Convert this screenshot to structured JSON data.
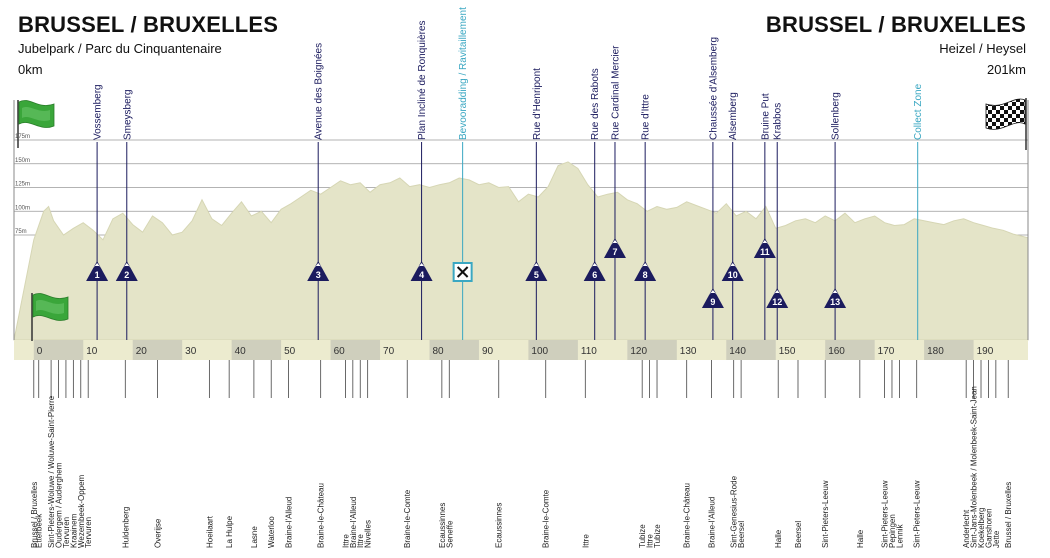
{
  "start": {
    "title": "BRUSSEL / BRUXELLES",
    "place": "Jubelpark / Parc du Cinquantenaire",
    "km": "0km"
  },
  "finish": {
    "title": "BRUSSEL / BRUXELLES",
    "place": "Heizel / Heysel",
    "km": "201km"
  },
  "colors": {
    "profile": "#e4e4c8",
    "profile_edge": "#d6d6b4",
    "axis_band": "#ecebcf",
    "axis_dark": "#cfcfbd",
    "marker": "#1b1b5e",
    "accent": "#3aa7c2",
    "flag_green": "#3aa63a"
  },
  "chart_data": {
    "type": "area",
    "title": "BRUSSEL / BRUXELLES",
    "xlim": [
      -4,
      201
    ],
    "x_ticks": [
      0,
      10,
      20,
      30,
      40,
      50,
      60,
      70,
      80,
      90,
      100,
      110,
      120,
      130,
      140,
      150,
      160,
      170,
      180,
      190
    ],
    "y_ticks": [
      {
        "value": 175,
        "label": "175m"
      },
      {
        "value": 150,
        "label": "150m"
      },
      {
        "value": 125,
        "label": "125m"
      },
      {
        "value": 100,
        "label": "100m"
      },
      {
        "value": 75,
        "label": "75m"
      }
    ],
    "elevation_profile": {
      "unit": "m",
      "x": [
        0,
        2,
        3,
        4,
        6,
        8,
        10,
        12,
        14,
        16,
        18,
        20,
        22,
        24,
        26,
        28,
        30,
        32,
        34,
        36,
        38,
        40,
        42,
        44,
        46,
        48,
        50,
        52,
        54,
        56,
        58,
        60,
        62,
        64,
        66,
        68,
        70,
        72,
        74,
        76,
        78,
        80,
        82,
        84,
        86,
        88,
        90,
        92,
        94,
        96,
        98,
        100,
        102,
        104,
        106,
        108,
        110,
        112,
        114,
        116,
        118,
        120,
        122,
        124,
        126,
        128,
        130,
        132,
        134,
        136,
        138,
        140,
        142,
        144,
        146,
        148,
        150,
        152,
        154,
        156,
        158,
        160,
        162,
        164,
        166,
        168,
        170,
        172,
        174,
        176,
        178,
        180,
        182,
        184,
        186,
        188,
        190,
        192,
        194,
        196,
        198,
        201
      ],
      "y": [
        70,
        100,
        105,
        90,
        75,
        82,
        88,
        80,
        70,
        92,
        98,
        86,
        78,
        95,
        88,
        75,
        78,
        90,
        112,
        92,
        85,
        98,
        110,
        95,
        100,
        88,
        102,
        108,
        115,
        122,
        118,
        125,
        132,
        128,
        130,
        120,
        128,
        130,
        135,
        126,
        128,
        125,
        128,
        130,
        135,
        133,
        128,
        130,
        125,
        126,
        110,
        118,
        115,
        126,
        148,
        152,
        145,
        128,
        115,
        118,
        120,
        112,
        108,
        100,
        105,
        102,
        104,
        110,
        106,
        102,
        98,
        108,
        95,
        100,
        92,
        105,
        82,
        85,
        90,
        92,
        88,
        95,
        90,
        98,
        88,
        92,
        95,
        88,
        85,
        86,
        92,
        90,
        88,
        86,
        90,
        92,
        88,
        85,
        82,
        80,
        76,
        72
      ]
    },
    "climbs": [
      {
        "name": "Vossemberg",
        "km": 12.8,
        "number": "1",
        "row": 1
      },
      {
        "name": "Smeysberg",
        "km": 18.8,
        "number": "2",
        "row": 1
      },
      {
        "name": "Avenue des Boignées",
        "km": 57.5,
        "number": "3",
        "row": 1
      },
      {
        "name": "Plan Incliné de Ronquières",
        "km": 78.4,
        "number": "4",
        "row": 1
      },
      {
        "name": "Rue d'Henripont",
        "km": 101.6,
        "number": "5",
        "row": 1
      },
      {
        "name": "Rue des Rabots",
        "km": 113.4,
        "number": "6",
        "row": 1
      },
      {
        "name": "Rue Cardinal Mercier",
        "km": 117.5,
        "number": "7",
        "row": 0
      },
      {
        "name": "Rue d'Ittre",
        "km": 123.6,
        "number": "8",
        "row": 1
      },
      {
        "name": "Chaussée d'Alsemberg",
        "km": 137.3,
        "number": "9",
        "row": 2
      },
      {
        "name": "Alsemberg",
        "km": 141.3,
        "number": "10",
        "row": 1
      },
      {
        "name": "Bruine Put",
        "km": 147.8,
        "number": "11",
        "row": 0
      },
      {
        "name": "Krabbos",
        "km": 150.3,
        "number": "12",
        "row": 2
      },
      {
        "name": "Sollenberg",
        "km": 162.0,
        "number": "13",
        "row": 2
      }
    ],
    "feed_zone": {
      "name": "Bevooradding / Ravitaillement",
      "km": 86.7
    },
    "collect_zone": {
      "name": "Collect Zone",
      "km": 178.7
    },
    "places": [
      {
        "name": "Brussel / Bruxelles",
        "km": 0
      },
      {
        "name": "Etterbeek",
        "km": 1
      },
      {
        "name": "Sint-Pieters-Woluwe / Woluwe-Saint-Pierre",
        "km": 3.5
      },
      {
        "name": "Oudergem / Auderghem",
        "km": 5
      },
      {
        "name": "Tervuren",
        "km": 6.5
      },
      {
        "name": "Kraainem",
        "km": 8
      },
      {
        "name": "Wezembeek-Oppem",
        "km": 9.5
      },
      {
        "name": "Tervuren",
        "km": 11
      },
      {
        "name": "Huldenberg",
        "km": 18.5
      },
      {
        "name": "Overijse",
        "km": 25
      },
      {
        "name": "Hoeilaart",
        "km": 35.5
      },
      {
        "name": "La Hulpe",
        "km": 39.5
      },
      {
        "name": "Lasne",
        "km": 44.5
      },
      {
        "name": "Waterloo",
        "km": 48
      },
      {
        "name": "Braine-l'Alleud",
        "km": 51.5
      },
      {
        "name": "Braine-le-Château",
        "km": 58
      },
      {
        "name": "Ittre",
        "km": 63
      },
      {
        "name": "Braine-l'Alleud",
        "km": 64.5
      },
      {
        "name": "Ittre",
        "km": 66
      },
      {
        "name": "Nivelles",
        "km": 67.5
      },
      {
        "name": "Braine-le-Comte",
        "km": 75.5
      },
      {
        "name": "Ecaussinnes",
        "km": 82.5
      },
      {
        "name": "Seneffe",
        "km": 84
      },
      {
        "name": "Ecaussinnes",
        "km": 94
      },
      {
        "name": "Braine-le-Comte",
        "km": 103.5
      },
      {
        "name": "Ittre",
        "km": 111.5
      },
      {
        "name": "Tubize",
        "km": 123
      },
      {
        "name": "Ittre",
        "km": 124.5
      },
      {
        "name": "Tubize",
        "km": 126
      },
      {
        "name": "Braine-le-Château",
        "km": 132
      },
      {
        "name": "Braine-l'Alleud",
        "km": 137
      },
      {
        "name": "Sint-Genesius-Rode",
        "km": 141.5
      },
      {
        "name": "Beersel",
        "km": 143
      },
      {
        "name": "Halle",
        "km": 150.5
      },
      {
        "name": "Beersel",
        "km": 154.5
      },
      {
        "name": "Sint-Pieters-Leeuw",
        "km": 160
      },
      {
        "name": "Halle",
        "km": 167
      },
      {
        "name": "Sint-Pieters-Leeuw",
        "km": 172
      },
      {
        "name": "Pepingen",
        "km": 173.5
      },
      {
        "name": "Lennik",
        "km": 175
      },
      {
        "name": "Sint-Pieters-Leeuw",
        "km": 178.5
      },
      {
        "name": "Anderlecht",
        "km": 188.5
      },
      {
        "name": "Sint-Jans-Molenbeek / Molenbeek-Saint-Jean",
        "km": 190
      },
      {
        "name": "Koekelberg",
        "km": 191.5
      },
      {
        "name": "Ganshoren",
        "km": 193
      },
      {
        "name": "Jette",
        "km": 194.5
      },
      {
        "name": "Brussel / Bruxelles",
        "km": 197
      }
    ]
  }
}
